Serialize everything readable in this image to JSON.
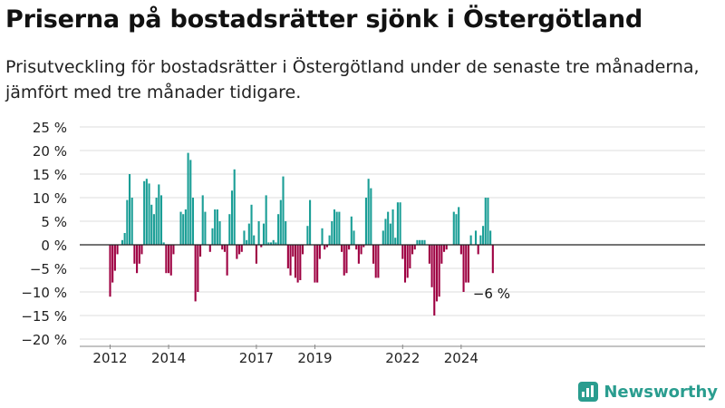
{
  "title": "Priserna på bostadsrätter sjönk i Östergötland",
  "subtitle": "Prisutveckling för bostadsrätter i Östergötland under de senaste tre månaderna, jämfört med tre månader tidigare.",
  "brand": "Newsworthy",
  "colors": {
    "positive": "#1a9e96",
    "negative": "#9e0142",
    "grid": "#dddddd",
    "axis": "#222222"
  },
  "chart_data": {
    "type": "bar",
    "ylim": [
      -20,
      25
    ],
    "yticks": [
      25,
      20,
      15,
      10,
      5,
      0,
      -5,
      -10,
      -15,
      -20
    ],
    "ytick_labels": [
      "25 %",
      "20 %",
      "15 %",
      "10 %",
      "5 %",
      "0 %",
      "−5 %",
      "−10 %",
      "−15 %",
      "−20 %"
    ],
    "xticks": [
      {
        "year": 2012,
        "label": "2012"
      },
      {
        "year": 2014,
        "label": "2014"
      },
      {
        "year": 2017,
        "label": "2017"
      },
      {
        "year": 2019,
        "label": "2019"
      },
      {
        "year": 2022,
        "label": "2022"
      },
      {
        "year": 2024,
        "label": "2024"
      }
    ],
    "x_start": "2012-01",
    "grid": true,
    "annotation": "−6 %",
    "values": [
      -11,
      -8,
      -5.5,
      -2,
      0,
      1,
      2.5,
      9.5,
      15,
      10,
      -4,
      -6,
      -4,
      -2,
      13.5,
      14,
      13,
      8.5,
      6.5,
      10,
      12.8,
      10.5,
      0.5,
      -6,
      -6,
      -6.5,
      -2,
      0,
      0,
      7,
      6.5,
      7.5,
      19.5,
      18,
      10,
      -12,
      -10,
      -2.5,
      10.5,
      7,
      0,
      -1.5,
      3.5,
      7.5,
      7.5,
      5,
      -1,
      -1.5,
      -6.5,
      6.5,
      11.5,
      16,
      -3,
      -2,
      -1.5,
      3,
      1,
      4.5,
      8.5,
      2,
      -4,
      5,
      -0.5,
      4.5,
      10.5,
      0.5,
      0.5,
      1,
      0.5,
      6.5,
      9.5,
      14.5,
      5,
      -5,
      -6.5,
      -2.5,
      -7,
      -8,
      -7.5,
      -2,
      0,
      4,
      9.5,
      0,
      -8,
      -8,
      -3,
      3.5,
      -1,
      -0.5,
      2,
      5,
      7.5,
      7,
      7,
      -1.5,
      -6.5,
      -6,
      -1,
      6,
      3,
      -1,
      -4,
      -2,
      -0.5,
      10,
      14,
      12,
      -4,
      -7,
      -7,
      0,
      3,
      5.5,
      7,
      4.5,
      7.5,
      1.5,
      9,
      9,
      -3,
      -8,
      -7,
      -5,
      -2,
      -1,
      1,
      1,
      1,
      1,
      0,
      -4,
      -9,
      -15,
      -12,
      -11,
      -4,
      -1.5,
      -1,
      0,
      0,
      7,
      6.5,
      8,
      -2,
      -10,
      -8,
      -8,
      2,
      0,
      3,
      -2,
      2,
      4,
      10,
      10,
      3,
      -6
    ]
  }
}
